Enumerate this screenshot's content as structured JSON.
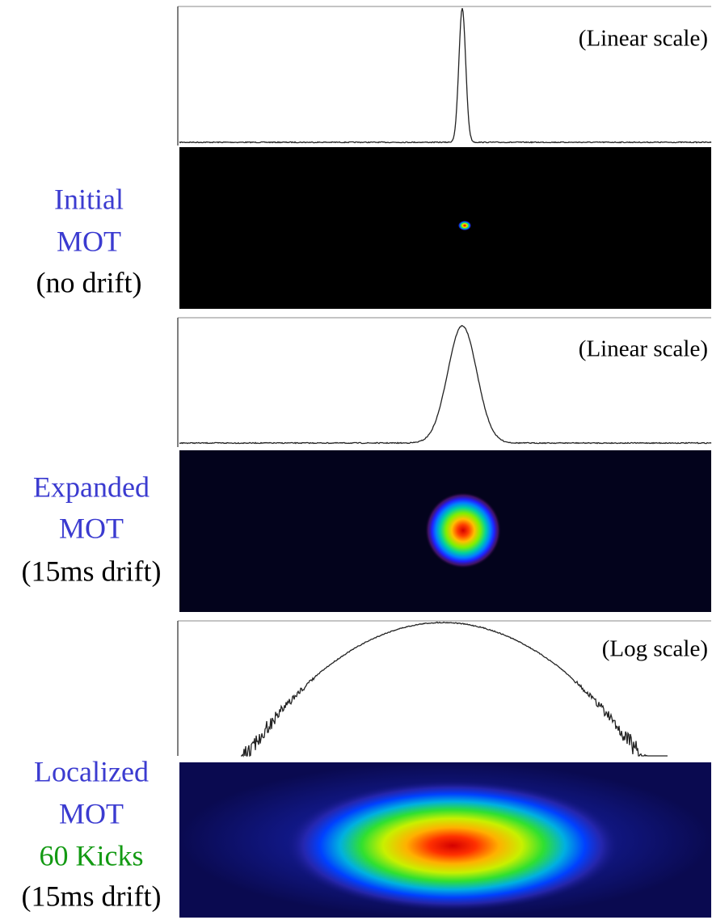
{
  "panels": [
    {
      "scale_label": "(Linear scale)",
      "label_lines": [
        {
          "text": "Initial",
          "color": "#3b3bd0"
        },
        {
          "text": "MOT",
          "color": "#3b3bd0"
        },
        {
          "text": "(no drift)",
          "color": "#000000"
        }
      ]
    },
    {
      "scale_label": "(Linear scale)",
      "label_lines": [
        {
          "text": "Expanded",
          "color": "#3b3bd0"
        },
        {
          "text": "MOT",
          "color": "#3b3bd0"
        },
        {
          "text": "(15ms drift)",
          "color": "#000000"
        }
      ]
    },
    {
      "scale_label": "(Log scale)",
      "label_lines": [
        {
          "text": "Localized",
          "color": "#3b3bd0"
        },
        {
          "text": "MOT",
          "color": "#3b3bd0"
        },
        {
          "text": "60 Kicks",
          "color": "#139a13"
        },
        {
          "text": "(15ms drift)",
          "color": "#000000"
        }
      ]
    }
  ]
}
